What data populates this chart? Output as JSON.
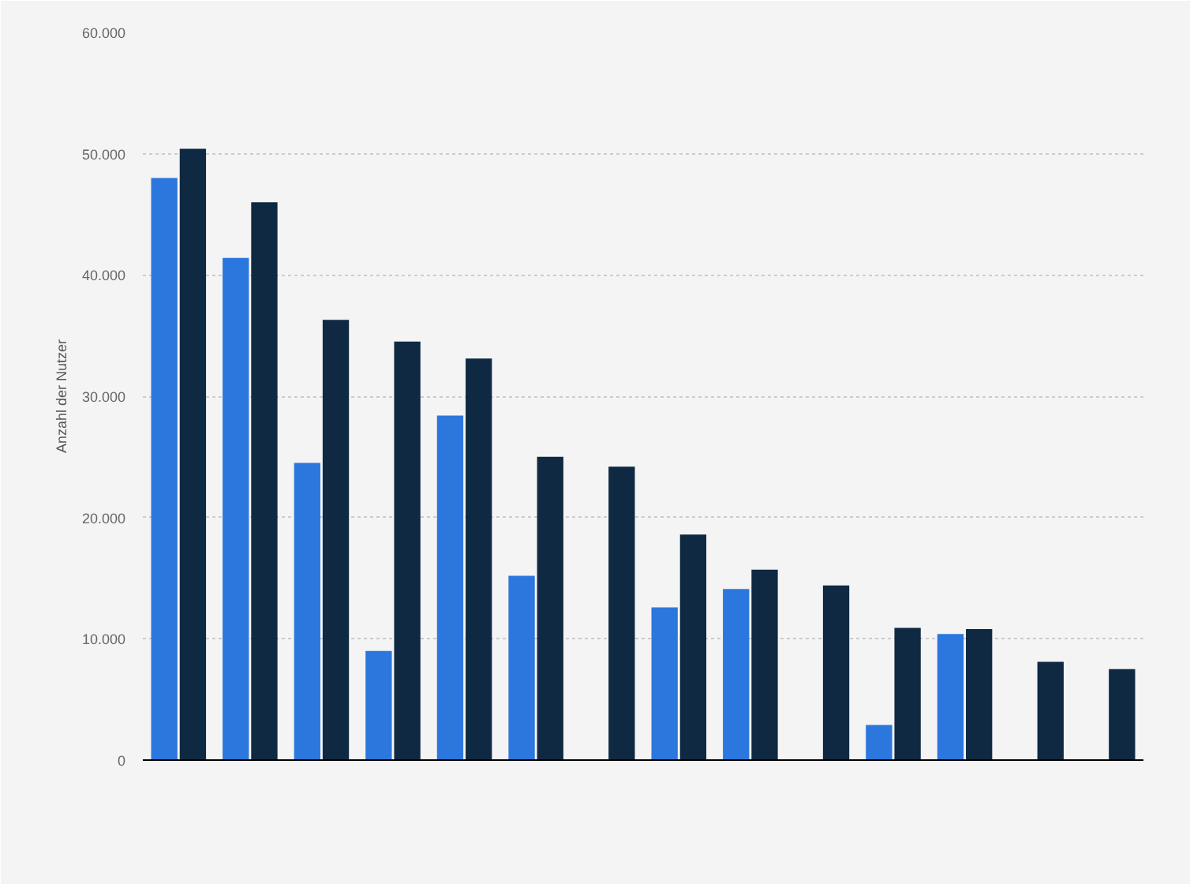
{
  "chart_data": {
    "type": "bar",
    "ylabel": "Anzahl der Nutzer",
    "categories": [
      null,
      null,
      null,
      null,
      null,
      null,
      null,
      null,
      null,
      null,
      null,
      null,
      null,
      null
    ],
    "series": [
      {
        "color": "#2c77dd",
        "values": [
          48000,
          41400,
          24500,
          9000,
          28400,
          15200,
          null,
          12600,
          14100,
          null,
          2900,
          10400,
          null,
          null
        ]
      },
      {
        "color": "#0f2942",
        "values": [
          50400,
          46000,
          36300,
          34500,
          33100,
          25000,
          24200,
          18600,
          15700,
          14400,
          10900,
          10800,
          8100,
          7500
        ]
      }
    ],
    "ylim": [
      0,
      60000
    ],
    "yticks": [
      {
        "value": 0,
        "label": "0"
      },
      {
        "value": 10000,
        "label": "10.000"
      },
      {
        "value": 20000,
        "label": "20.000"
      },
      {
        "value": 30000,
        "label": "30.000"
      },
      {
        "value": 40000,
        "label": "40.000"
      },
      {
        "value": 50000,
        "label": "50.000"
      },
      {
        "value": 60000,
        "label": "60.000"
      }
    ],
    "grid": "y",
    "tick_labels": "y"
  }
}
